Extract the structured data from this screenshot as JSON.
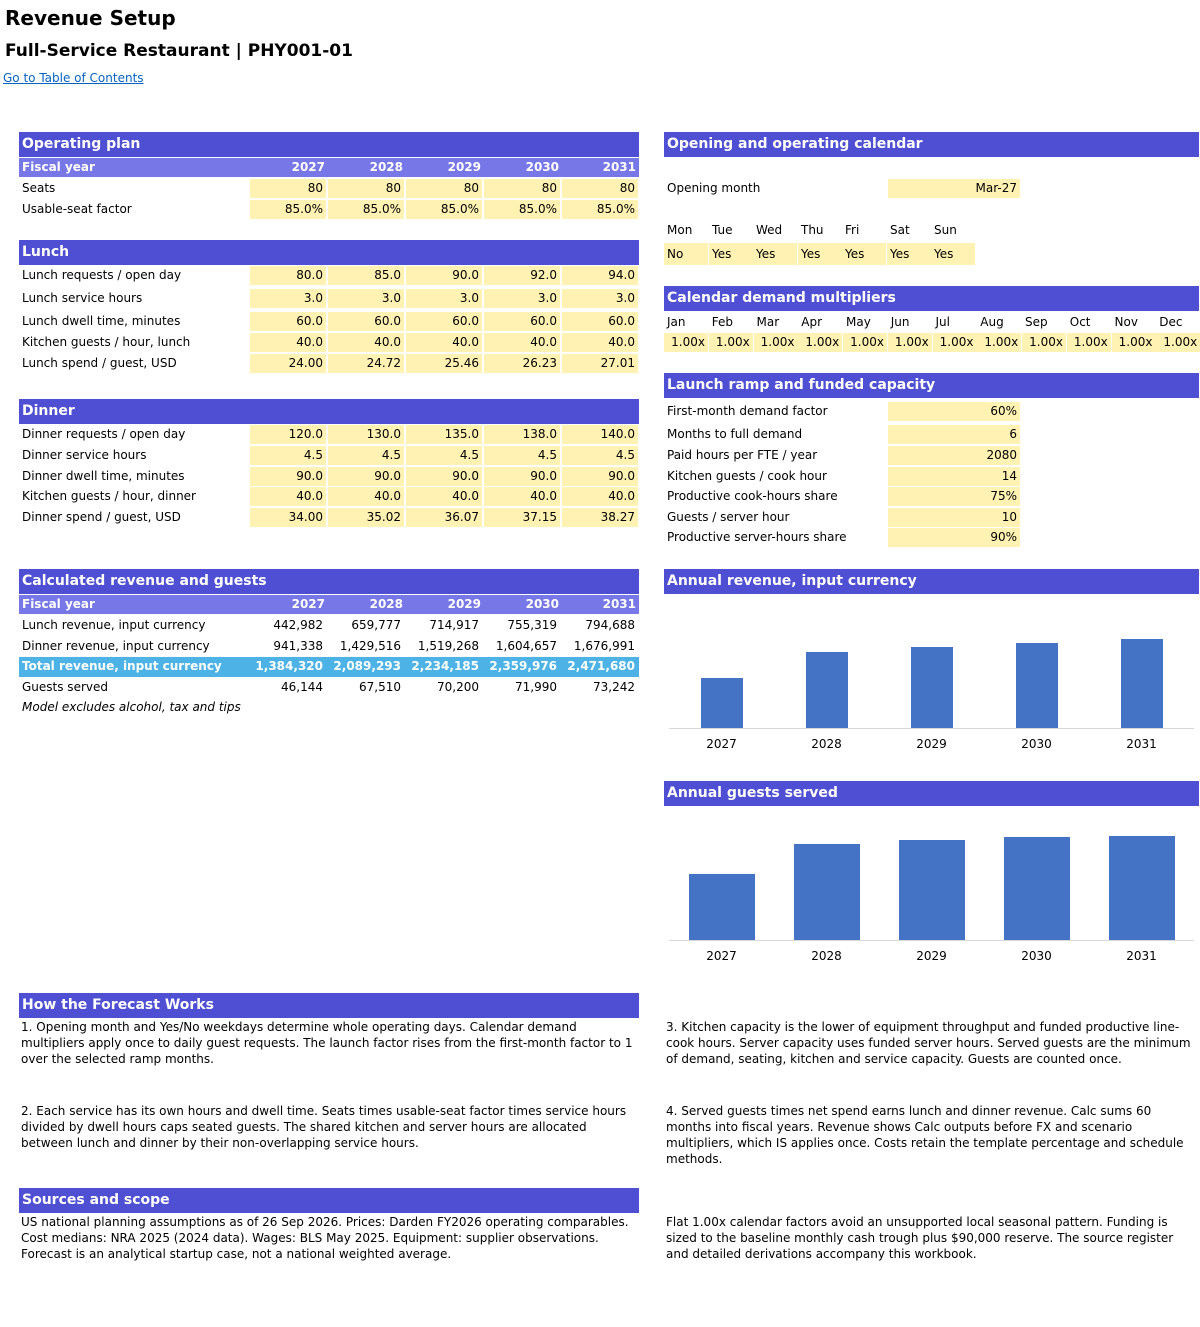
{
  "title": "Revenue Setup",
  "subtitle": "Full-Service Restaurant | PHY001-01",
  "toc_link": "Go to Table of Contents",
  "years": [
    "2027",
    "2028",
    "2029",
    "2030",
    "2031"
  ],
  "operating_plan": {
    "header": "Operating plan",
    "fiscal_label": "Fiscal year",
    "rows": [
      {
        "label": "Seats",
        "values": [
          "80",
          "80",
          "80",
          "80",
          "80"
        ]
      },
      {
        "label": "Usable-seat factor",
        "values": [
          "85.0%",
          "85.0%",
          "85.0%",
          "85.0%",
          "85.0%"
        ]
      }
    ]
  },
  "lunch": {
    "header": "Lunch",
    "rows": [
      {
        "label": "Lunch requests / open day",
        "values": [
          "80.0",
          "85.0",
          "90.0",
          "92.0",
          "94.0"
        ]
      },
      {
        "label": "Lunch service hours",
        "values": [
          "3.0",
          "3.0",
          "3.0",
          "3.0",
          "3.0"
        ]
      },
      {
        "label": "Lunch dwell time, minutes",
        "values": [
          "60.0",
          "60.0",
          "60.0",
          "60.0",
          "60.0"
        ]
      },
      {
        "label": "Kitchen guests / hour, lunch",
        "values": [
          "40.0",
          "40.0",
          "40.0",
          "40.0",
          "40.0"
        ]
      },
      {
        "label": "Lunch spend / guest, USD",
        "values": [
          "24.00",
          "24.72",
          "25.46",
          "26.23",
          "27.01"
        ]
      }
    ]
  },
  "dinner": {
    "header": "Dinner",
    "rows": [
      {
        "label": "Dinner requests / open day",
        "values": [
          "120.0",
          "130.0",
          "135.0",
          "138.0",
          "140.0"
        ]
      },
      {
        "label": "Dinner service hours",
        "values": [
          "4.5",
          "4.5",
          "4.5",
          "4.5",
          "4.5"
        ]
      },
      {
        "label": "Dinner dwell time, minutes",
        "values": [
          "90.0",
          "90.0",
          "90.0",
          "90.0",
          "90.0"
        ]
      },
      {
        "label": "Kitchen guests / hour, dinner",
        "values": [
          "40.0",
          "40.0",
          "40.0",
          "40.0",
          "40.0"
        ]
      },
      {
        "label": "Dinner spend / guest, USD",
        "values": [
          "34.00",
          "35.02",
          "36.07",
          "37.15",
          "38.27"
        ]
      }
    ]
  },
  "calculated": {
    "header": "Calculated revenue and guests",
    "fiscal_label": "Fiscal year",
    "lunch_revenue": {
      "label": "Lunch revenue, input currency",
      "values": [
        "442,982",
        "659,777",
        "714,917",
        "755,319",
        "794,688"
      ]
    },
    "dinner_revenue": {
      "label": "Dinner revenue, input currency",
      "values": [
        "941,338",
        "1,429,516",
        "1,519,268",
        "1,604,657",
        "1,676,991"
      ]
    },
    "total_revenue": {
      "label": "Total revenue, input currency",
      "values": [
        "1,384,320",
        "2,089,293",
        "2,234,185",
        "2,359,976",
        "2,471,680"
      ]
    },
    "guests_served": {
      "label": "Guests served",
      "values": [
        "46,144",
        "67,510",
        "70,200",
        "71,990",
        "73,242"
      ]
    },
    "note": "Model excludes alcohol, tax and tips"
  },
  "calendar": {
    "header": "Opening and operating calendar",
    "opening_label": "Opening month",
    "opening_value": "Mar-27",
    "days": [
      "Mon",
      "Tue",
      "Wed",
      "Thu",
      "Fri",
      "Sat",
      "Sun"
    ],
    "open_flags": [
      "No",
      "Yes",
      "Yes",
      "Yes",
      "Yes",
      "Yes",
      "Yes"
    ]
  },
  "multipliers": {
    "header": "Calendar demand multipliers",
    "months": [
      "Jan",
      "Feb",
      "Mar",
      "Apr",
      "May",
      "Jun",
      "Jul",
      "Aug",
      "Sep",
      "Oct",
      "Nov",
      "Dec"
    ],
    "values": [
      "1.00x",
      "1.00x",
      "1.00x",
      "1.00x",
      "1.00x",
      "1.00x",
      "1.00x",
      "1.00x",
      "1.00x",
      "1.00x",
      "1.00x",
      "1.00x"
    ]
  },
  "ramp": {
    "header": "Launch ramp and funded capacity",
    "rows": [
      {
        "label": "First-month demand factor",
        "value": "60%"
      },
      {
        "label": "Months to full demand",
        "value": "6"
      },
      {
        "label": "Paid hours per FTE / year",
        "value": "2080"
      },
      {
        "label": "Kitchen guests / cook hour",
        "value": "14"
      },
      {
        "label": "Productive cook-hours share",
        "value": "75%"
      },
      {
        "label": "Guests / server hour",
        "value": "10"
      },
      {
        "label": "Productive server-hours share",
        "value": "90%"
      }
    ]
  },
  "chart_data": [
    {
      "type": "bar",
      "title": "Annual revenue, input currency",
      "categories": [
        "2027",
        "2028",
        "2029",
        "2030",
        "2031"
      ],
      "values": [
        1384320,
        2089293,
        2234185,
        2359976,
        2471680
      ],
      "xlabel": "",
      "ylabel": "",
      "ylim": [
        0,
        2600000
      ],
      "grid": false,
      "legend": "none",
      "color": "#4472c4"
    },
    {
      "type": "bar",
      "title": "Annual guests served",
      "categories": [
        "2027",
        "2028",
        "2029",
        "2030",
        "2031"
      ],
      "values": [
        46144,
        67510,
        70200,
        71990,
        73242
      ],
      "xlabel": "",
      "ylabel": "",
      "ylim": [
        0,
        80000
      ],
      "grid": false,
      "legend": "none",
      "color": "#4472c4"
    }
  ],
  "forecast": {
    "header": "How the Forecast Works",
    "p1": "1. Opening month and Yes/No weekdays determine whole operating days. Calendar demand multipliers apply once to daily guest requests. The launch factor rises from the first-month factor to 1 over the selected ramp months.",
    "p2": "2. Each service has its own hours and dwell time. Seats times usable-seat factor times service hours divided by dwell hours caps seated guests. The shared kitchen and server hours are allocated between lunch and dinner by their non-overlapping service hours.",
    "p3": "3. Kitchen capacity is the lower of equipment throughput and funded productive line-cook hours. Server capacity uses funded server hours. Served guests are the minimum of demand, seating, kitchen and service capacity. Guests are counted once.",
    "p4": "4. Served guests times net spend earns lunch and dinner revenue. Calc sums 60 months into fiscal years. Revenue shows Calc outputs before FX and scenario multipliers, which IS applies once. Costs retain the template percentage and schedule methods."
  },
  "sources": {
    "header": "Sources and scope",
    "p1": "US national planning assumptions as of 26 Sep 2026. Prices: Darden FY2026 operating comparables. Cost medians: NRA 2025 (2024 data). Wages: BLS May 2025. Equipment: supplier observations. Forecast is an analytical startup case, not a national weighted average.",
    "p2": "Flat 1.00x calendar factors avoid an unsupported local seasonal pattern. Funding is sized to the baseline monthly cash trough plus $90,000 reserve. The source register and detailed derivations accompany this workbook."
  }
}
